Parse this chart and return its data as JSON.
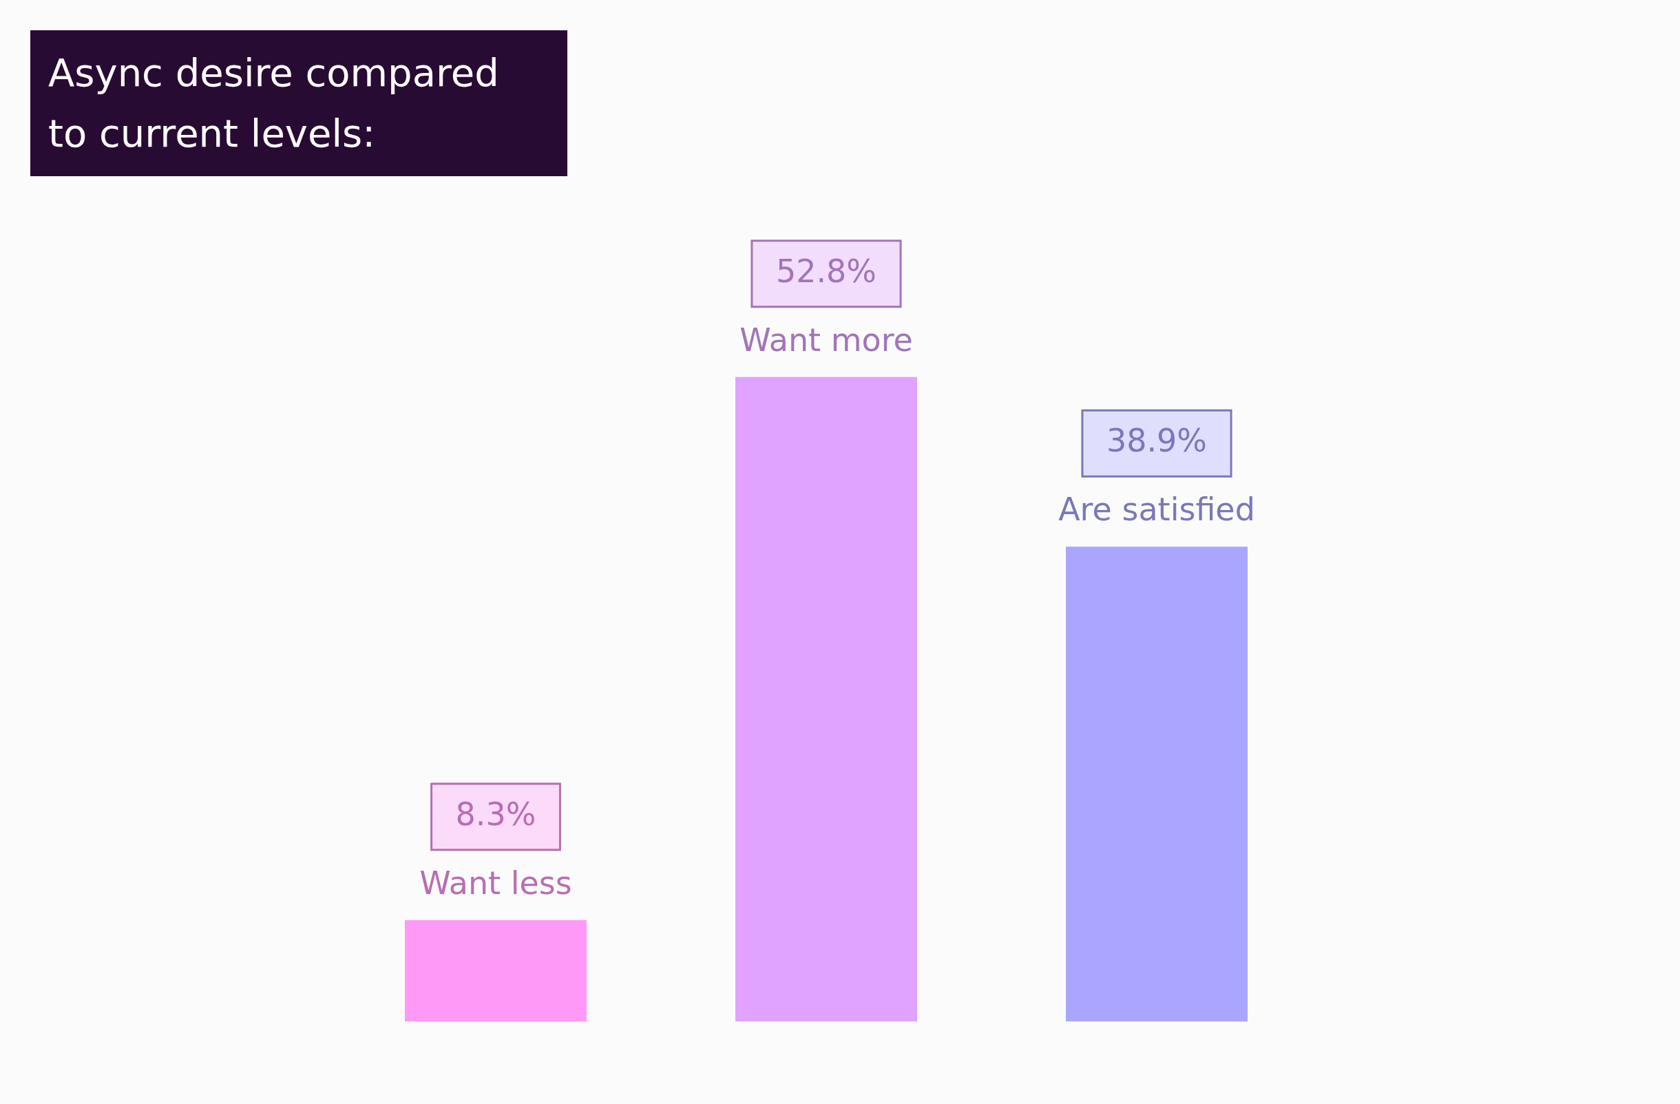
{
  "chart_data": {
    "type": "bar",
    "title": "Async desire compared to current levels:",
    "categories": [
      "Want less",
      "Want more",
      "Are satisfied"
    ],
    "values": [
      8.3,
      52.8,
      38.9
    ],
    "value_labels": [
      "8.3%",
      "52.8%",
      "38.9%"
    ],
    "colors": [
      "#ff99f7",
      "#e0a3ff",
      "#aaa6ff"
    ],
    "tick_labels": false
  }
}
